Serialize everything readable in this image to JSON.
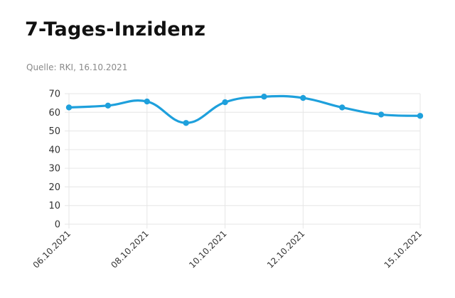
{
  "header": {
    "title": "7-Tages-Inzidenz",
    "source": "Quelle: RKI, 16.10.2021"
  },
  "chart_data": {
    "type": "line",
    "title": "7-Tages-Inzidenz",
    "subtitle": "Quelle: RKI, 16.10.2021",
    "xlabel": "",
    "ylabel": "",
    "x": [
      "06.10.2021",
      "07.10.2021",
      "08.10.2021",
      "09.10.2021",
      "10.10.2021",
      "11.10.2021",
      "12.10.2021",
      "13.10.2021",
      "14.10.2021",
      "15.10.2021"
    ],
    "x_tick_labels": [
      "06.10.2021",
      "08.10.2021",
      "10.10.2021",
      "12.10.2021",
      "15.10.2021"
    ],
    "x_tick_indices": [
      0,
      2,
      4,
      6,
      9
    ],
    "series": [
      {
        "values": [
          62.6,
          63.6,
          65.8,
          54.3,
          65.4,
          68.4,
          67.7,
          62.6,
          58.8,
          58.1
        ],
        "color": "#1ea0dc"
      }
    ],
    "ylim": [
      0,
      70
    ],
    "y_ticks": [
      0,
      10,
      20,
      30,
      40,
      50,
      60,
      70
    ],
    "grid": true,
    "legend": "none",
    "smooth": true
  },
  "colors": {
    "line": "#1ea0dc",
    "grid": "#e6e6e6",
    "text": "#333333"
  }
}
